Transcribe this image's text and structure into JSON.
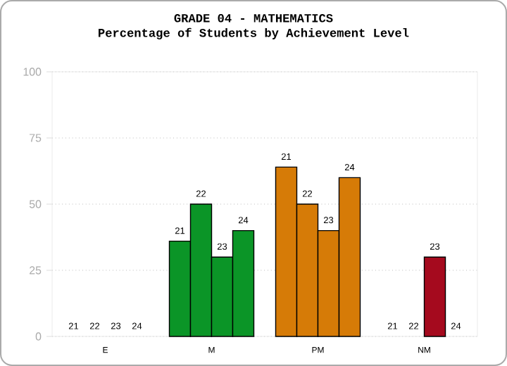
{
  "chart_data": {
    "type": "bar",
    "title": "GRADE 04 - MATHEMATICS",
    "subtitle": "Percentage of Students by Achievement Level",
    "categories": [
      "E",
      "M",
      "PM",
      "NM"
    ],
    "series": [
      {
        "name": "21",
        "colors": [
          null,
          "#0b9527",
          "#d67b07",
          null
        ],
        "values": [
          0,
          36,
          64,
          0
        ]
      },
      {
        "name": "22",
        "colors": [
          null,
          "#0b9527",
          "#d67b07",
          null
        ],
        "values": [
          0,
          50,
          50,
          0
        ]
      },
      {
        "name": "23",
        "colors": [
          null,
          "#0b9527",
          "#d67b07",
          "#a50a1e"
        ],
        "values": [
          0,
          30,
          40,
          30
        ]
      },
      {
        "name": "24",
        "colors": [
          null,
          "#0b9527",
          "#d67b07",
          null
        ],
        "values": [
          0,
          40,
          60,
          0
        ]
      }
    ],
    "ylim": [
      0,
      100
    ],
    "yticks": [
      0,
      25,
      50,
      75,
      100
    ],
    "grid": "y"
  }
}
